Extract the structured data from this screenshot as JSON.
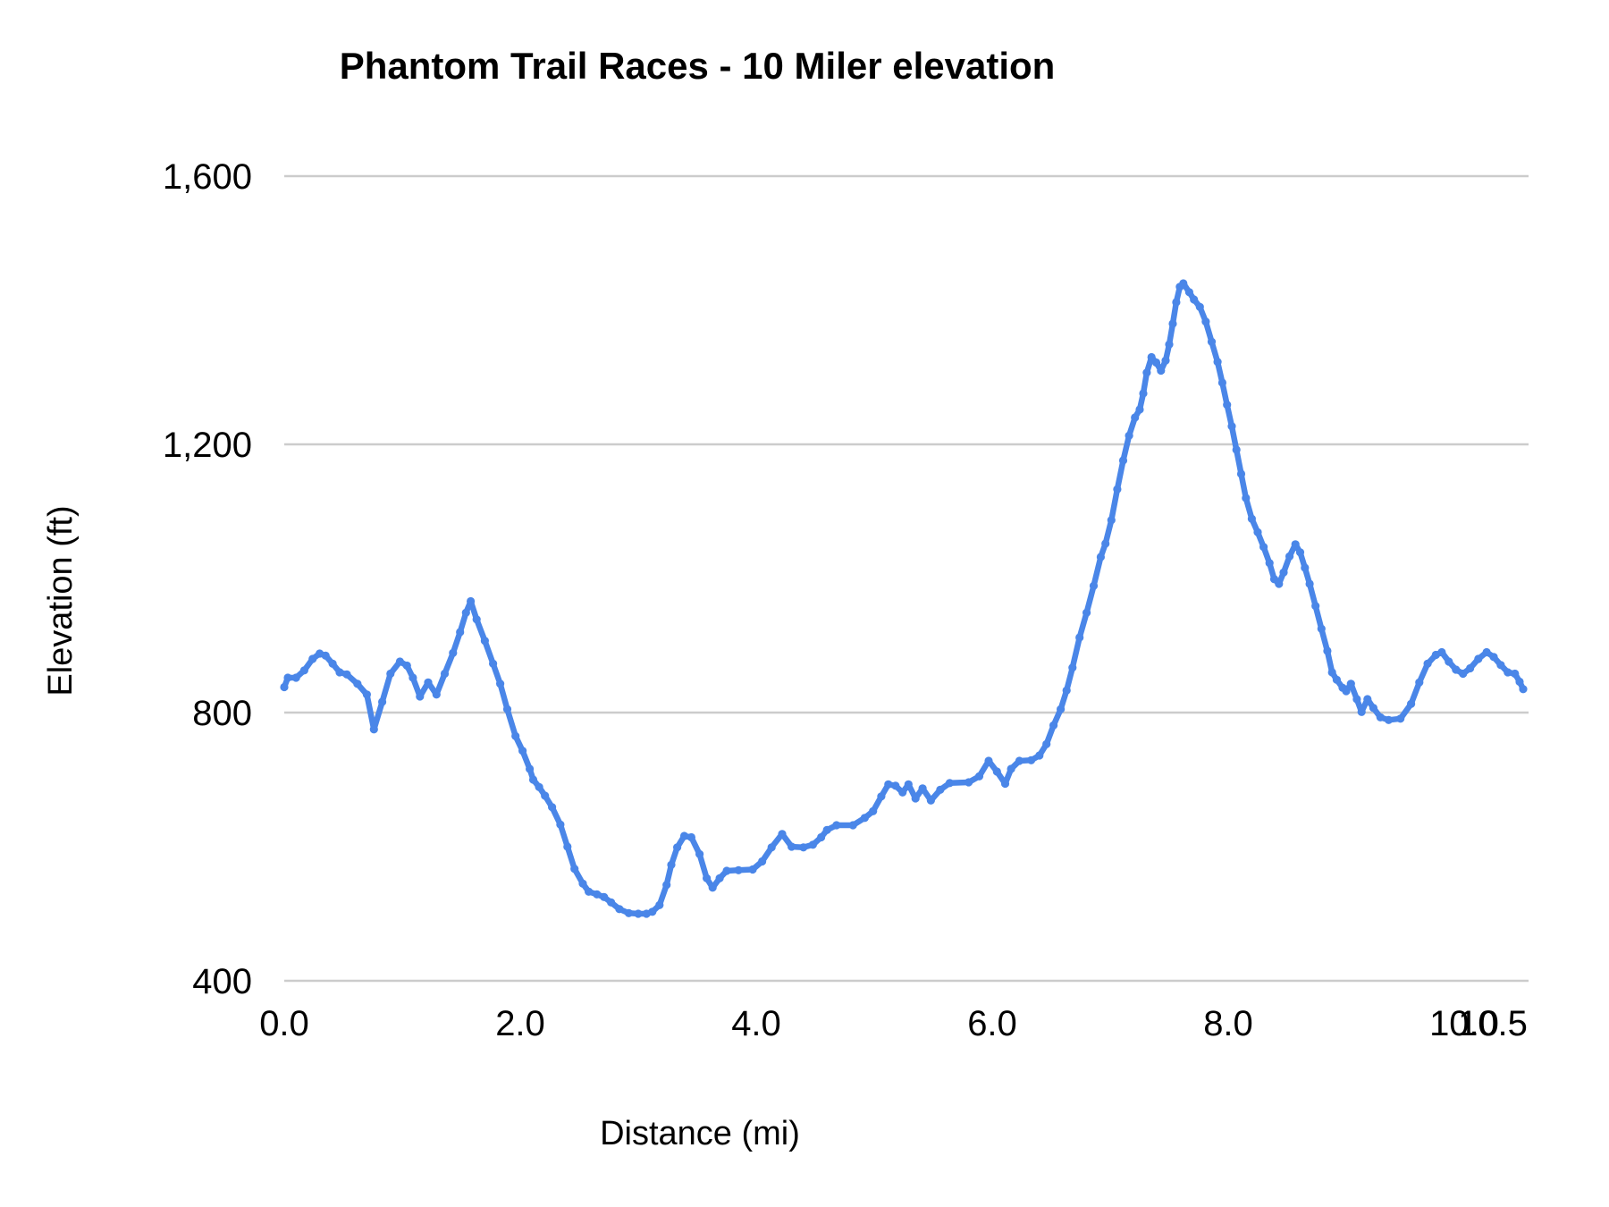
{
  "chart": {
    "title": "Phantom Trail Races - 10 Miler elevation",
    "xlabel": "Distance (mi)",
    "ylabel": "Elevation (ft)"
  },
  "colors": {
    "series_blue": "#4a86e8",
    "gridline": "#cccccc",
    "text": "#000000",
    "background": "#ffffff"
  },
  "chart_data": {
    "type": "line",
    "title": "Phantom Trail Races - 10 Miler elevation",
    "xlabel": "Distance (mi)",
    "ylabel": "Elevation (ft)",
    "xlim": [
      0,
      10.5
    ],
    "ylim": [
      400,
      1600
    ],
    "grid": "horizontal-only",
    "legend_position": "none",
    "x_ticks": [
      {
        "label": "0.0",
        "value": 0
      },
      {
        "label": "2.0",
        "value": 2
      },
      {
        "label": "4.0",
        "value": 4
      },
      {
        "label": "6.0",
        "value": 6
      },
      {
        "label": "8.0",
        "value": 8
      },
      {
        "label": "10.0",
        "value": 10
      },
      {
        "label": "10.5",
        "value": 10.5
      }
    ],
    "y_ticks": [
      {
        "label": "400",
        "value": 400
      },
      {
        "label": "800",
        "value": 800
      },
      {
        "label": "1,200",
        "value": 1200
      },
      {
        "label": "1,600",
        "value": 1600
      }
    ],
    "series": [
      {
        "name": "Elevation",
        "color": "#4a86e8",
        "marker": "circle",
        "line_width": 6.5,
        "marker_radius": 4.6,
        "points": [
          [
            0,
            838
          ],
          [
            0.03,
            852
          ],
          [
            0.1,
            852
          ],
          [
            0.17,
            863
          ],
          [
            0.24,
            880
          ],
          [
            0.3,
            888
          ],
          [
            0.35,
            885
          ],
          [
            0.41,
            873
          ],
          [
            0.47,
            860
          ],
          [
            0.53,
            857
          ],
          [
            0.62,
            843
          ],
          [
            0.7,
            827
          ],
          [
            0.76,
            775
          ],
          [
            0.83,
            816
          ],
          [
            0.9,
            858
          ],
          [
            0.98,
            876
          ],
          [
            1.04,
            870
          ],
          [
            1.09,
            852
          ],
          [
            1.15,
            824
          ],
          [
            1.22,
            845
          ],
          [
            1.29,
            827
          ],
          [
            1.36,
            858
          ],
          [
            1.43,
            889
          ],
          [
            1.49,
            920
          ],
          [
            1.54,
            949
          ],
          [
            1.58,
            966
          ],
          [
            1.63,
            939
          ],
          [
            1.7,
            907
          ],
          [
            1.77,
            873
          ],
          [
            1.83,
            843
          ],
          [
            1.89,
            805
          ],
          [
            1.96,
            765
          ],
          [
            2.02,
            743
          ],
          [
            2.08,
            716
          ],
          [
            2.11,
            700
          ],
          [
            2.16,
            689
          ],
          [
            2.21,
            676
          ],
          [
            2.27,
            659
          ],
          [
            2.34,
            633
          ],
          [
            2.4,
            600
          ],
          [
            2.46,
            567
          ],
          [
            2.53,
            545
          ],
          [
            2.58,
            533
          ],
          [
            2.65,
            529
          ],
          [
            2.71,
            525
          ],
          [
            2.77,
            517
          ],
          [
            2.84,
            507
          ],
          [
            2.92,
            501
          ],
          [
            3,
            500
          ],
          [
            3.07,
            500
          ],
          [
            3.12,
            503
          ],
          [
            3.18,
            513
          ],
          [
            3.24,
            543
          ],
          [
            3.28,
            573
          ],
          [
            3.33,
            599
          ],
          [
            3.39,
            616
          ],
          [
            3.45,
            614
          ],
          [
            3.52,
            589
          ],
          [
            3.58,
            553
          ],
          [
            3.63,
            539
          ],
          [
            3.69,
            553
          ],
          [
            3.75,
            564
          ],
          [
            3.85,
            565
          ],
          [
            3.97,
            566
          ],
          [
            4.05,
            578
          ],
          [
            4.13,
            599
          ],
          [
            4.22,
            619
          ],
          [
            4.3,
            600
          ],
          [
            4.4,
            599
          ],
          [
            4.48,
            603
          ],
          [
            4.55,
            614
          ],
          [
            4.6,
            625
          ],
          [
            4.68,
            632
          ],
          [
            4.82,
            632
          ],
          [
            4.92,
            643
          ],
          [
            4.99,
            653
          ],
          [
            5.06,
            675
          ],
          [
            5.12,
            693
          ],
          [
            5.18,
            691
          ],
          [
            5.24,
            681
          ],
          [
            5.29,
            693
          ],
          [
            5.35,
            672
          ],
          [
            5.41,
            687
          ],
          [
            5.48,
            669
          ],
          [
            5.56,
            685
          ],
          [
            5.64,
            695
          ],
          [
            5.8,
            696
          ],
          [
            5.89,
            705
          ],
          [
            5.97,
            728
          ],
          [
            6.04,
            712
          ],
          [
            6.11,
            694
          ],
          [
            6.16,
            716
          ],
          [
            6.23,
            728
          ],
          [
            6.33,
            729
          ],
          [
            6.4,
            736
          ],
          [
            6.46,
            753
          ],
          [
            6.52,
            781
          ],
          [
            6.58,
            805
          ],
          [
            6.63,
            833
          ],
          [
            6.68,
            867
          ],
          [
            6.74,
            912
          ],
          [
            6.8,
            949
          ],
          [
            6.86,
            989
          ],
          [
            6.92,
            1032
          ],
          [
            6.96,
            1052
          ],
          [
            7.01,
            1087
          ],
          [
            7.06,
            1133
          ],
          [
            7.11,
            1176
          ],
          [
            7.16,
            1213
          ],
          [
            7.21,
            1240
          ],
          [
            7.25,
            1252
          ],
          [
            7.28,
            1276
          ],
          [
            7.31,
            1307
          ],
          [
            7.35,
            1330
          ],
          [
            7.39,
            1322
          ],
          [
            7.43,
            1310
          ],
          [
            7.47,
            1325
          ],
          [
            7.5,
            1349
          ],
          [
            7.53,
            1380
          ],
          [
            7.56,
            1412
          ],
          [
            7.59,
            1435
          ],
          [
            7.62,
            1440
          ],
          [
            7.67,
            1427
          ],
          [
            7.71,
            1416
          ],
          [
            7.76,
            1405
          ],
          [
            7.81,
            1383
          ],
          [
            7.86,
            1353
          ],
          [
            7.91,
            1323
          ],
          [
            7.95,
            1292
          ],
          [
            7.99,
            1259
          ],
          [
            8.03,
            1227
          ],
          [
            8.07,
            1192
          ],
          [
            8.11,
            1156
          ],
          [
            8.15,
            1120
          ],
          [
            8.2,
            1089
          ],
          [
            8.25,
            1069
          ],
          [
            8.3,
            1047
          ],
          [
            8.35,
            1023
          ],
          [
            8.39,
            999
          ],
          [
            8.43,
            992
          ],
          [
            8.47,
            1009
          ],
          [
            8.52,
            1033
          ],
          [
            8.57,
            1051
          ],
          [
            8.61,
            1039
          ],
          [
            8.65,
            1016
          ],
          [
            8.69,
            992
          ],
          [
            8.74,
            959
          ],
          [
            8.79,
            925
          ],
          [
            8.84,
            892
          ],
          [
            8.88,
            860
          ],
          [
            8.92,
            849
          ],
          [
            8.97,
            837
          ],
          [
            9,
            832
          ],
          [
            9.04,
            843
          ],
          [
            9.09,
            820
          ],
          [
            9.13,
            801
          ],
          [
            9.18,
            820
          ],
          [
            9.23,
            807
          ],
          [
            9.29,
            793
          ],
          [
            9.36,
            789
          ],
          [
            9.46,
            791
          ],
          [
            9.55,
            813
          ],
          [
            9.62,
            845
          ],
          [
            9.69,
            873
          ],
          [
            9.76,
            886
          ],
          [
            9.81,
            890
          ],
          [
            9.87,
            876
          ],
          [
            9.93,
            864
          ],
          [
            9.99,
            858
          ],
          [
            10.05,
            866
          ],
          [
            10.12,
            880
          ],
          [
            10.19,
            890
          ],
          [
            10.25,
            883
          ],
          [
            10.31,
            871
          ],
          [
            10.37,
            860
          ],
          [
            10.43,
            858
          ],
          [
            10.47,
            846
          ],
          [
            10.5,
            835
          ]
        ]
      }
    ]
  }
}
